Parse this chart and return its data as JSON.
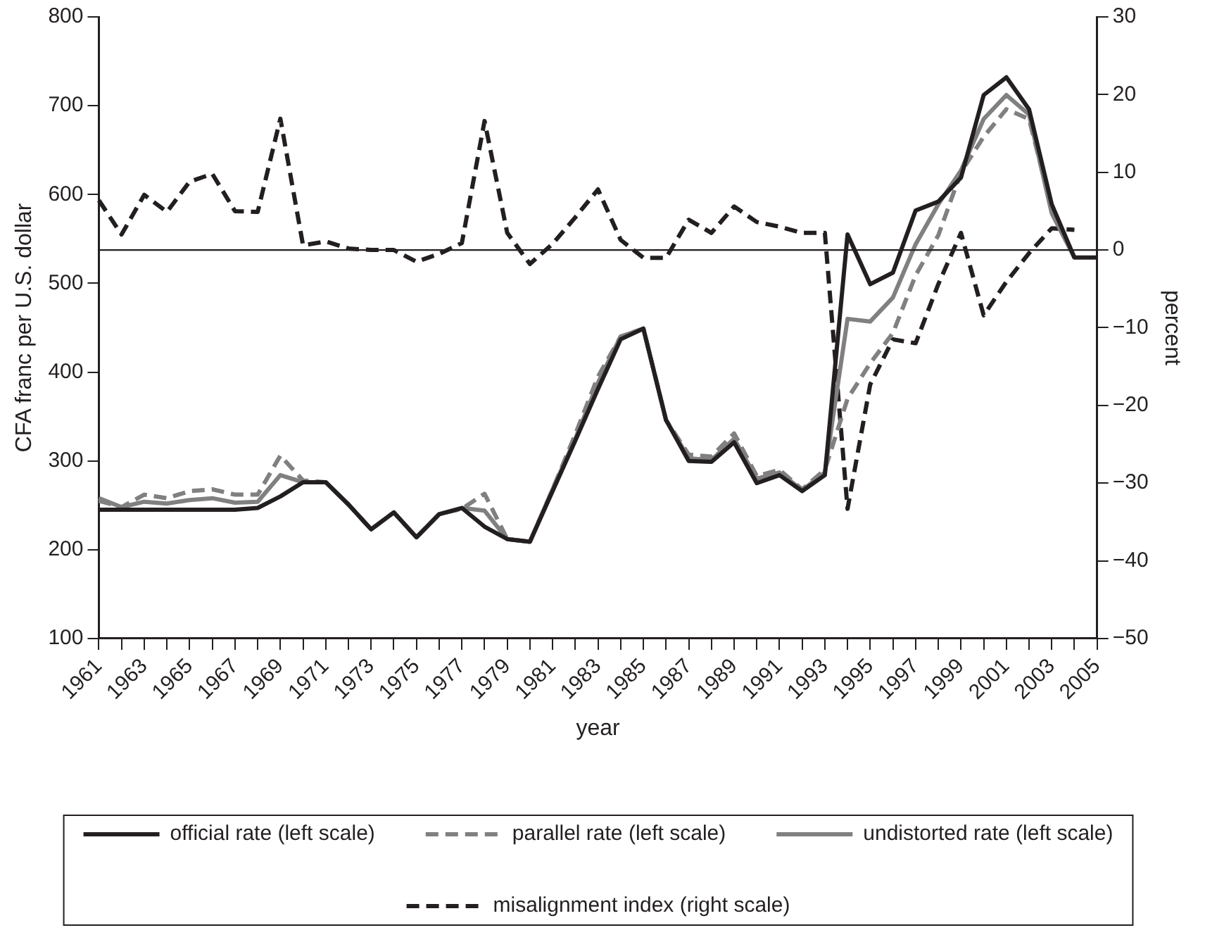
{
  "chart_data": {
    "type": "line",
    "xlabel": "year",
    "ylabel": "CFA franc per U.S. dollar",
    "y2label": "percent",
    "categories": [
      "1961",
      null,
      "1963",
      null,
      "1965",
      null,
      "1967",
      null,
      "1969",
      null,
      "1971",
      null,
      "1973",
      null,
      "1975",
      null,
      "1977",
      null,
      "1979",
      null,
      "1981",
      null,
      "1983",
      null,
      "1985",
      null,
      "1987",
      null,
      "1989",
      null,
      "1991",
      null,
      "1993",
      null,
      "1995",
      null,
      "1997",
      null,
      "1999",
      null,
      "2001",
      null,
      "2003",
      null,
      "2005"
    ],
    "ylim": [
      100,
      800
    ],
    "yticks": [
      100,
      200,
      300,
      400,
      500,
      600,
      700,
      800
    ],
    "y2lim": [
      -50,
      30
    ],
    "y2ticks": [
      {
        "value": -50,
        "label": "−50"
      },
      {
        "value": -40,
        "label": "−40"
      },
      {
        "value": -30,
        "label": "−30"
      },
      {
        "value": -20,
        "label": "−20"
      },
      {
        "value": -10,
        "label": "−10"
      },
      0,
      10,
      20,
      30
    ],
    "grid": false,
    "legend": "bottom",
    "marker": "none",
    "ref_lines": [
      {
        "axis": "y2",
        "value": 0,
        "color": "#231f20",
        "line_style": "solid"
      }
    ],
    "series": [
      {
        "name": "official rate (left scale)",
        "color": "#231f20",
        "line_style": "solid",
        "values": [
          245,
          245,
          245,
          245,
          245,
          245,
          245,
          247,
          260,
          276,
          276,
          251,
          223,
          242,
          214,
          240,
          247,
          226,
          212,
          209,
          266,
          323,
          381,
          437,
          449,
          346,
          300,
          299,
          321,
          275,
          284,
          266,
          284,
          555,
          499,
          512,
          582,
          592,
          619,
          712,
          732,
          696,
          589,
          529,
          529
        ]
      },
      {
        "name": "parallel rate (left scale)",
        "color": "#808080",
        "line_style": "dashed",
        "values": [
          255,
          248,
          262,
          258,
          266,
          268,
          262,
          262,
          306,
          278,
          276,
          251,
          223,
          242,
          214,
          240,
          246,
          263,
          212,
          209,
          268,
          330,
          395,
          440,
          449,
          346,
          307,
          305,
          331,
          283,
          290,
          268,
          290,
          370,
          410,
          444,
          509,
          554,
          625,
          665,
          696,
          685,
          584,
          529,
          null
        ]
      },
      {
        "name": "undistorted rate (left scale)",
        "color": "#808080",
        "line_style": "solid",
        "values": [
          258,
          248,
          254,
          252,
          256,
          258,
          253,
          254,
          284,
          276,
          276,
          251,
          223,
          242,
          214,
          240,
          247,
          244,
          212,
          209,
          268,
          325,
          388,
          440,
          449,
          346,
          303,
          301,
          325,
          280,
          287,
          267,
          287,
          460,
          457,
          484,
          544,
          589,
          627,
          685,
          712,
          690,
          579,
          529,
          null
        ]
      },
      {
        "name": "misalignment index (right scale)",
        "color": "#231f20",
        "line_style": "dashed",
        "axis": "y2",
        "values": [
          6.4,
          2.0,
          7.1,
          4.9,
          8.8,
          9.8,
          5.0,
          4.9,
          16.9,
          0.6,
          1.1,
          0.2,
          0,
          0,
          -1.5,
          -0.5,
          0.9,
          16.6,
          2.2,
          -1.8,
          0.8,
          4.2,
          7.8,
          1.3,
          -1.0,
          -1.0,
          3.9,
          2.2,
          5.6,
          3.6,
          3.0,
          2.2,
          2.2,
          -33.3,
          -17.3,
          -11.5,
          -12.0,
          -4.4,
          2.2,
          -8.4,
          -4.1,
          -0.4,
          2.8,
          2.6,
          null
        ]
      }
    ]
  }
}
